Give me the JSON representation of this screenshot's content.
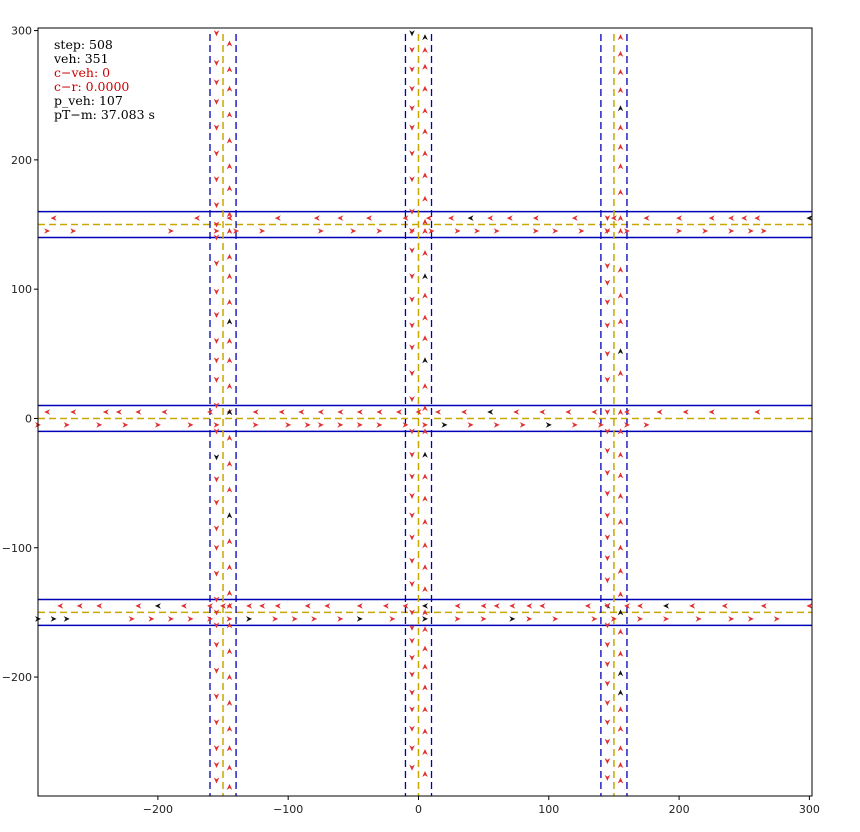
{
  "chart_data": {
    "type": "scatter",
    "title": "",
    "xlabel": "",
    "ylabel": "",
    "xlim": [
      -292,
      302
    ],
    "ylim": [
      -292,
      302
    ],
    "xticks": [
      -200,
      -100,
      0,
      100,
      200,
      300
    ],
    "yticks": [
      -200,
      -100,
      0,
      100,
      200,
      300
    ],
    "xtick_labels": [
      "−200",
      "−100",
      "0",
      "100",
      "200",
      "300"
    ],
    "ytick_labels": [
      "−200",
      "−100",
      "0",
      "100",
      "200",
      "300"
    ],
    "grid": false,
    "colors": {
      "road_edge": "#0000b8",
      "center_line": "#c8a800",
      "vehicle_normal": "#e03030",
      "vehicle_dark": "#111111",
      "stat_normal": "#000000",
      "stat_alert": "#cc0000"
    },
    "roads": {
      "horizontal_centers": [
        150,
        0,
        -150
      ],
      "vertical_centers": [
        -150,
        0,
        150
      ],
      "half_width": 10
    },
    "stats": [
      {
        "label": "step: 508",
        "alert": false
      },
      {
        "label": "veh: 351",
        "alert": false
      },
      {
        "label": "c−veh: 0",
        "alert": true
      },
      {
        "label": "c−r: 0.0000",
        "alert": true
      },
      {
        "label": "p_veh: 107",
        "alert": false
      },
      {
        "label": "pT−m: 37.083 s",
        "alert": false
      }
    ],
    "vehicles": {
      "horizontal": [
        {
          "road": 150,
          "lane_y": 155,
          "dir": "left",
          "x": [
            -280,
            -170,
            -145,
            -108,
            -78,
            -60,
            -38,
            -10,
            8,
            25,
            40,
            55,
            70,
            90,
            120,
            150,
            175,
            200,
            225,
            240,
            250,
            260,
            300
          ],
          "dark": [
            10,
            22
          ]
        },
        {
          "road": 150,
          "lane_y": 145,
          "dir": "right",
          "x": [
            -285,
            -265,
            -190,
            -155,
            -140,
            -120,
            -75,
            -50,
            -30,
            -5,
            10,
            30,
            45,
            60,
            90,
            105,
            125,
            145,
            160,
            200,
            220,
            240,
            255,
            265
          ]
        },
        {
          "road": 0,
          "lane_y": 5,
          "dir": "left",
          "x": [
            -285,
            -265,
            -240,
            -230,
            -215,
            -195,
            -160,
            -145,
            -125,
            -105,
            -90,
            -75,
            -60,
            -45,
            -30,
            -15,
            0,
            15,
            35,
            55,
            75,
            95,
            115,
            135,
            160,
            185,
            205,
            225,
            260
          ],
          "dark": [
            19
          ]
        },
        {
          "road": 0,
          "lane_y": -5,
          "dir": "right",
          "x": [
            -292,
            -270,
            -245,
            -225,
            -200,
            -175,
            -155,
            -125,
            -100,
            -85,
            -75,
            -60,
            -45,
            -30,
            -10,
            5,
            20,
            40,
            60,
            80,
            100,
            120,
            140,
            160,
            175
          ],
          "dark": [
            16,
            20
          ]
        },
        {
          "road": -150,
          "lane_y": -145,
          "dir": "left",
          "x": [
            -275,
            -260,
            -245,
            -215,
            -200,
            -180,
            -160,
            -150,
            -145,
            -130,
            -120,
            -108,
            -85,
            -70,
            -45,
            -25,
            -10,
            5,
            30,
            50,
            60,
            72,
            85,
            95,
            130,
            145,
            160,
            170,
            190,
            210,
            235,
            265,
            300
          ],
          "dark": [
            4,
            17,
            25,
            28
          ]
        },
        {
          "road": -150,
          "lane_y": -155,
          "dir": "right",
          "x": [
            -292,
            -280,
            -270,
            -220,
            -205,
            -190,
            -175,
            -160,
            -145,
            -130,
            -110,
            -95,
            -80,
            -60,
            -45,
            -20,
            5,
            30,
            50,
            72,
            85,
            105,
            135,
            150,
            170,
            190,
            215,
            240,
            255,
            275
          ],
          "dark": [
            0,
            1,
            2,
            9,
            14,
            16,
            19
          ]
        }
      ],
      "vertical": [
        {
          "road": -150,
          "lane_x": -155,
          "dir": "down",
          "y": [
            298,
            275,
            260,
            245,
            225,
            205,
            185,
            165,
            150,
            140,
            120,
            98,
            80,
            60,
            45,
            30,
            10,
            -10,
            -30,
            -47,
            -65,
            -85,
            -100,
            -120,
            -140,
            -150,
            -160,
            -175,
            -195,
            -215,
            -235,
            -255,
            -268,
            -280
          ],
          "dark": [
            18
          ]
        },
        {
          "road": -150,
          "lane_x": -145,
          "dir": "up",
          "y": [
            290,
            270,
            255,
            235,
            215,
            195,
            178,
            158,
            145,
            125,
            110,
            90,
            75,
            60,
            45,
            25,
            5,
            -15,
            -35,
            -55,
            -75,
            -95,
            -115,
            -135,
            -145,
            -160,
            -180,
            -200,
            -220,
            -240,
            -255,
            -270,
            -285
          ],
          "dark": [
            12,
            16,
            20
          ]
        },
        {
          "road": 0,
          "lane_x": -5,
          "dir": "down",
          "y": [
            298,
            285,
            270,
            255,
            240,
            225,
            205,
            185,
            160,
            145,
            130,
            110,
            92,
            72,
            55,
            35,
            15,
            -10,
            -28,
            -45,
            -60,
            -75,
            -92,
            -110,
            -128,
            -150,
            -162,
            -172,
            -185,
            -198,
            -212,
            -225,
            -240,
            -255,
            -270
          ],
          "dark": [
            0
          ]
        },
        {
          "road": 0,
          "lane_x": 5,
          "dir": "up",
          "y": [
            295,
            285,
            272,
            255,
            238,
            222,
            205,
            188,
            170,
            152,
            145,
            128,
            110,
            95,
            78,
            62,
            45,
            25,
            8,
            -10,
            -28,
            -45,
            -62,
            -80,
            -98,
            -115,
            -132,
            -150,
            -163,
            -178,
            -192,
            -208,
            -225,
            -242,
            -258,
            -275
          ],
          "dark": [
            0,
            12,
            16,
            20
          ]
        },
        {
          "road": 150,
          "lane_x": 145,
          "dir": "down",
          "y": [
            155,
            145,
            118,
            105,
            90,
            72,
            50,
            30,
            5,
            -10,
            -25,
            -42,
            -58,
            -75,
            -92,
            -108,
            -125,
            -145,
            -160,
            -175,
            -190,
            -205,
            -220,
            -235,
            -250,
            -265,
            -278
          ],
          "dark": []
        },
        {
          "road": 150,
          "lane_x": 155,
          "dir": "up",
          "y": [
            295,
            282,
            268,
            254,
            240,
            225,
            210,
            195,
            175,
            155,
            145,
            115,
            95,
            75,
            52,
            35,
            5,
            -10,
            -28,
            -44,
            -60,
            -80,
            -100,
            -118,
            -136,
            -150,
            -165,
            -182,
            -197,
            -212,
            -225,
            -240,
            -255,
            -268,
            -280
          ],
          "dark": [
            4,
            14,
            25,
            28,
            29
          ]
        }
      ]
    }
  }
}
